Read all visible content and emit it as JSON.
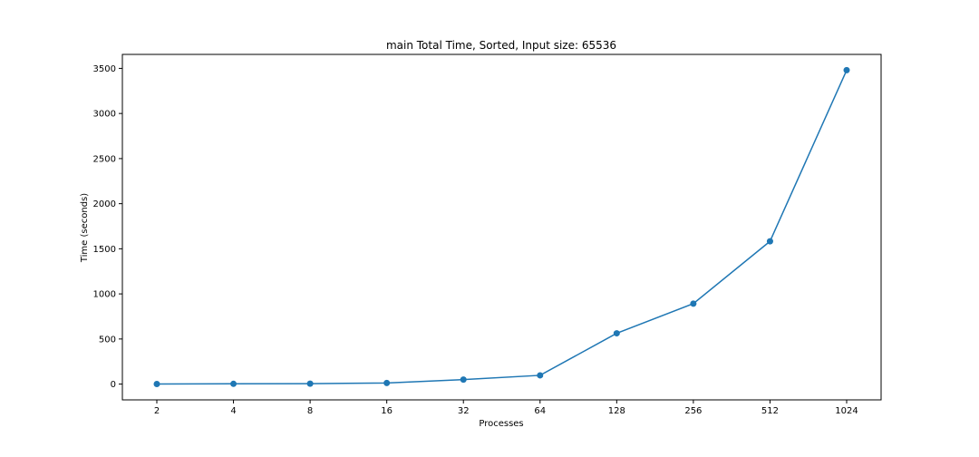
{
  "chart_data": {
    "type": "line",
    "title": "main Total Time, Sorted, Input size: 65536",
    "xlabel": "Processes",
    "ylabel": "Time (seconds)",
    "categories": [
      "2",
      "4",
      "8",
      "16",
      "32",
      "64",
      "128",
      "256",
      "512",
      "1024"
    ],
    "series": [
      {
        "values": [
          1,
          3,
          5,
          12,
          50,
          97,
          563,
          892,
          1583,
          3480
        ],
        "color": "#1f77b4",
        "marker": "circle"
      }
    ],
    "yticks": [
      "0",
      "500",
      "1000",
      "1500",
      "2000",
      "2500",
      "3000",
      "3500"
    ],
    "ylim": [
      -175,
      3655
    ],
    "grid": false,
    "legend": false
  }
}
